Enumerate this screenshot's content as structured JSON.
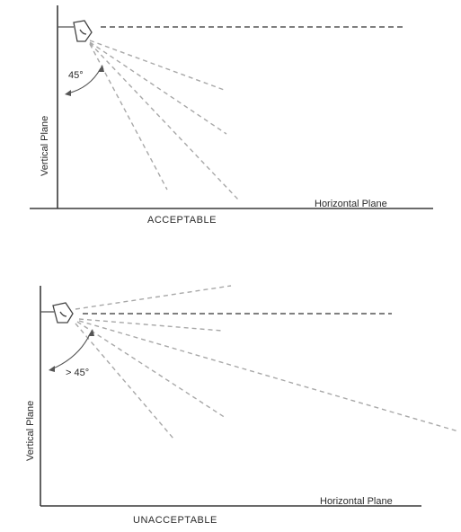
{
  "acceptable": {
    "angle_label": "45°",
    "vertical_axis_label": "Vertical Plane",
    "horizontal_axis_label": "Horizontal Plane",
    "caption": "ACCEPTABLE"
  },
  "unacceptable": {
    "angle_label": "> 45°",
    "vertical_axis_label": "Vertical Plane",
    "horizontal_axis_label": "Horizontal Plane",
    "caption": "UNACCEPTABLE"
  }
}
